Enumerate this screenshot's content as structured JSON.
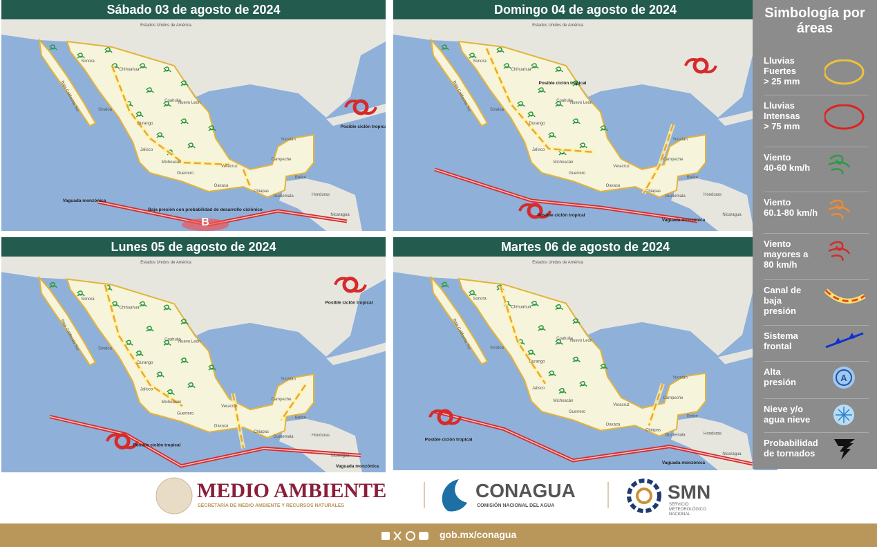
{
  "panels": [
    {
      "title": "Sábado 03 de agosto de 2024",
      "notes": [
        "Vaguada monzónica",
        "Baja presión con probabilidad de desarrollo ciclónico",
        "B",
        "Posible ciclón tropical"
      ]
    },
    {
      "title": "Domingo 04 de agosto de 2024",
      "notes": [
        "Posible ciclón tropical",
        "Posible ciclón tropical",
        "Vaguada monzónica"
      ]
    },
    {
      "title": "Lunes 05 de agosto de 2024",
      "notes": [
        "Posible ciclón tropical",
        "Posible ciclón tropical",
        "Vaguada monzónica"
      ]
    },
    {
      "title": "Martes 06 de agosto de 2024",
      "notes": [
        "Posible ciclón tropical",
        "Vaguada monzónica"
      ]
    }
  ],
  "map_labels": [
    "Estados Unidos de América",
    "Sonora",
    "Chihuahua",
    "Coahuila",
    "Nuevo León",
    "Sinaloa",
    "Durango",
    "Baja California Sur",
    "Jalisco",
    "Michoacán",
    "Guerrero",
    "Veracruz",
    "Oaxaca",
    "Chiapas",
    "Yucatán",
    "Campeche",
    "Belice",
    "Guatemala",
    "Honduras",
    "Nicaragua"
  ],
  "legend": {
    "title": "Simbología por áreas",
    "items": [
      "Lluvias\nFuertes\n> 25 mm",
      "Lluvias\nIntensas\n> 75 mm",
      "Viento\n40-60 km/h",
      "Viento\n60.1-80 km/h",
      "Viento\nmayores a\n80 km/h",
      "Canal de\nbaja\npresión",
      "Sistema\nfrontal",
      "Alta\npresión",
      "Nieve y/o\nagua nieve",
      "Probabilidad\nde tornados"
    ]
  },
  "footer": {
    "medio": "MEDIO AMBIENTE",
    "medio_sub": "SECRETARÍA DE MEDIO AMBIENTE Y RECURSOS NATURALES",
    "conagua": "CONAGUA",
    "conagua_sub": "COMISIÓN NACIONAL DEL AGUA",
    "smn": "SMN",
    "smn_sub": "SERVICIO\nMETEOROLÓGICO\nNACIONAL",
    "web": "gob.mx/conagua"
  }
}
